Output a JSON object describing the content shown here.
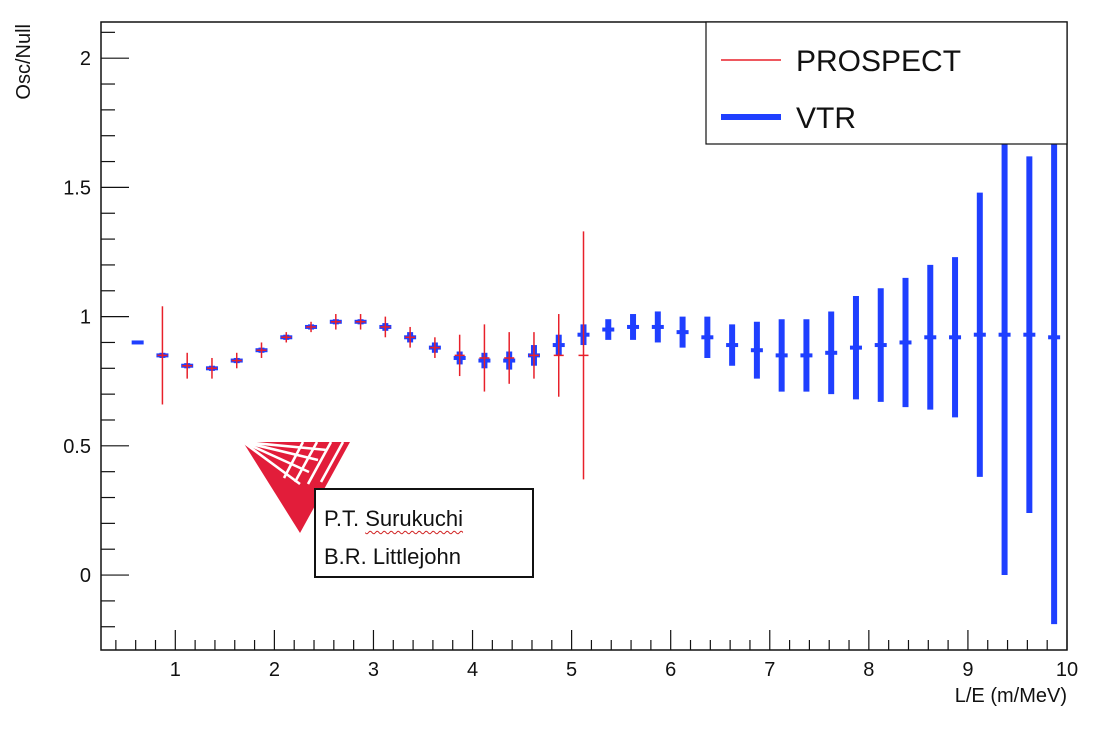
{
  "chart_data": {
    "type": "scatter",
    "title": "",
    "xlabel": "L/E (m/MeV)",
    "ylabel": "Osc/Null",
    "xlim": [
      0.25,
      10
    ],
    "ylim": [
      -0.29,
      2.14
    ],
    "x_ticks": [
      1,
      2,
      3,
      4,
      5,
      6,
      7,
      8,
      9,
      10
    ],
    "y_ticks": [
      0,
      0.5,
      1,
      1.5,
      2
    ],
    "x_tick_labels": [
      "1",
      "2",
      "3",
      "4",
      "5",
      "6",
      "7",
      "8",
      "9",
      "10"
    ],
    "y_tick_labels": [
      "0",
      "0.5",
      "1",
      "1.5",
      "2"
    ],
    "grid": false,
    "legend_position": "top-right",
    "series": [
      {
        "name": "PROSPECT",
        "color": "#e8202a",
        "style": "thin error bars",
        "points": [
          {
            "x": 0.87,
            "y": 0.85,
            "err": 0.19
          },
          {
            "x": 1.12,
            "y": 0.81,
            "err": 0.05
          },
          {
            "x": 1.37,
            "y": 0.8,
            "err": 0.04
          },
          {
            "x": 1.62,
            "y": 0.83,
            "err": 0.03
          },
          {
            "x": 1.87,
            "y": 0.87,
            "err": 0.03
          },
          {
            "x": 2.12,
            "y": 0.92,
            "err": 0.02
          },
          {
            "x": 2.37,
            "y": 0.96,
            "err": 0.02
          },
          {
            "x": 2.62,
            "y": 0.98,
            "err": 0.03
          },
          {
            "x": 2.87,
            "y": 0.98,
            "err": 0.03
          },
          {
            "x": 3.12,
            "y": 0.96,
            "err": 0.04
          },
          {
            "x": 3.37,
            "y": 0.92,
            "err": 0.04
          },
          {
            "x": 3.62,
            "y": 0.88,
            "err": 0.04
          },
          {
            "x": 3.87,
            "y": 0.85,
            "err": 0.08
          },
          {
            "x": 4.12,
            "y": 0.84,
            "err": 0.13
          },
          {
            "x": 4.37,
            "y": 0.84,
            "err": 0.1
          },
          {
            "x": 4.62,
            "y": 0.85,
            "err": 0.09
          },
          {
            "x": 4.87,
            "y": 0.85,
            "err": 0.16
          },
          {
            "x": 5.12,
            "y": 0.85,
            "err": 0.48
          }
        ]
      },
      {
        "name": "VTR",
        "color": "#1f3fff",
        "style": "thick error bars",
        "points": [
          {
            "x": 0.62,
            "y": 0.9,
            "err": 0.0
          },
          {
            "x": 0.87,
            "y": 0.85,
            "err": 0.01
          },
          {
            "x": 1.12,
            "y": 0.81,
            "err": 0.01
          },
          {
            "x": 1.37,
            "y": 0.8,
            "err": 0.01
          },
          {
            "x": 1.62,
            "y": 0.83,
            "err": 0.01
          },
          {
            "x": 1.87,
            "y": 0.87,
            "err": 0.01
          },
          {
            "x": 2.12,
            "y": 0.92,
            "err": 0.01
          },
          {
            "x": 2.37,
            "y": 0.96,
            "err": 0.01
          },
          {
            "x": 2.62,
            "y": 0.98,
            "err": 0.01
          },
          {
            "x": 2.87,
            "y": 0.98,
            "err": 0.01
          },
          {
            "x": 3.12,
            "y": 0.96,
            "err": 0.015
          },
          {
            "x": 3.37,
            "y": 0.92,
            "err": 0.02
          },
          {
            "x": 3.62,
            "y": 0.88,
            "err": 0.02
          },
          {
            "x": 3.87,
            "y": 0.84,
            "err": 0.025
          },
          {
            "x": 4.12,
            "y": 0.83,
            "err": 0.03
          },
          {
            "x": 4.37,
            "y": 0.83,
            "err": 0.035
          },
          {
            "x": 4.62,
            "y": 0.85,
            "err": 0.04
          },
          {
            "x": 4.87,
            "y": 0.89,
            "err": 0.04
          },
          {
            "x": 5.12,
            "y": 0.93,
            "err": 0.04
          },
          {
            "x": 5.37,
            "y": 0.95,
            "err": 0.04
          },
          {
            "x": 5.62,
            "y": 0.96,
            "err": 0.05
          },
          {
            "x": 5.87,
            "y": 0.96,
            "err": 0.06
          },
          {
            "x": 6.12,
            "y": 0.94,
            "err": 0.06
          },
          {
            "x": 6.37,
            "y": 0.92,
            "err": 0.08
          },
          {
            "x": 6.62,
            "y": 0.89,
            "err": 0.08
          },
          {
            "x": 6.87,
            "y": 0.87,
            "err": 0.11
          },
          {
            "x": 7.12,
            "y": 0.85,
            "err": 0.14
          },
          {
            "x": 7.37,
            "y": 0.85,
            "err": 0.14
          },
          {
            "x": 7.62,
            "y": 0.86,
            "err": 0.16
          },
          {
            "x": 7.87,
            "y": 0.88,
            "err": 0.2
          },
          {
            "x": 8.12,
            "y": 0.89,
            "err": 0.22
          },
          {
            "x": 8.37,
            "y": 0.9,
            "err": 0.25
          },
          {
            "x": 8.62,
            "y": 0.92,
            "err": 0.28
          },
          {
            "x": 8.87,
            "y": 0.92,
            "err": 0.31
          },
          {
            "x": 9.12,
            "y": 0.93,
            "err": 0.55
          },
          {
            "x": 9.37,
            "y": 0.93,
            "err": 0.93
          },
          {
            "x": 9.62,
            "y": 0.93,
            "err": 0.69
          },
          {
            "x": 9.87,
            "y": 0.92,
            "err": 1.11
          }
        ]
      }
    ],
    "annotations": [
      "P.T. Surukuchi",
      "B.R. Littlejohn"
    ]
  },
  "colors": {
    "prospect": "#e8202a",
    "vtr": "#1f3fff",
    "logo": "#e21d3a"
  },
  "annotation_box": {
    "line1_initials": "P.T. ",
    "line1_surname": "Surukuchi",
    "line2": "B.R. Littlejohn"
  },
  "logo": {
    "icon": "prospect-logo-icon"
  }
}
